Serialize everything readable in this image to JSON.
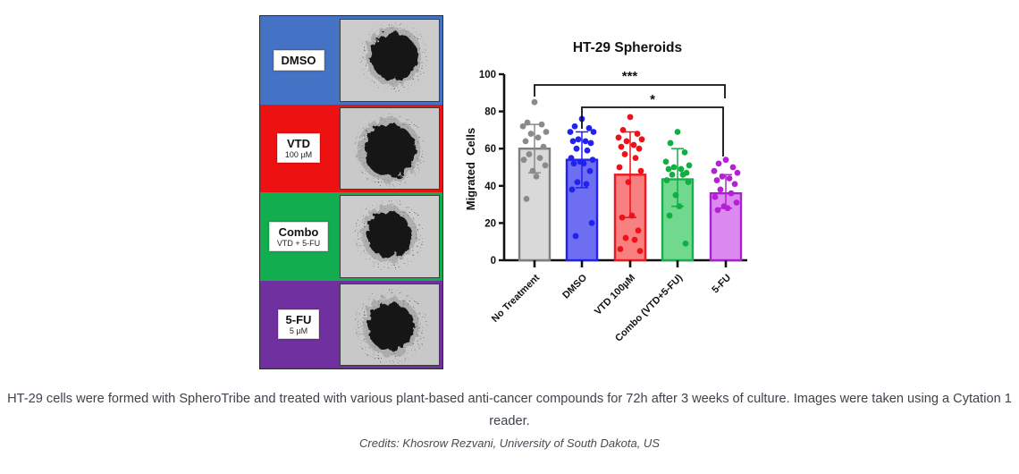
{
  "panel": {
    "rows": [
      {
        "label": "DMSO",
        "sublabel": "",
        "color": "#4472c4",
        "image": "dmso-spheroid-image"
      },
      {
        "label": "VTD",
        "sublabel": "100 µM",
        "color": "#ee1111",
        "image": "vtd-spheroid-image"
      },
      {
        "label": "Combo",
        "sublabel": "VTD + 5-FU",
        "color": "#12ad4f",
        "image": "combo-spheroid-image"
      },
      {
        "label": "5-FU",
        "sublabel": "5 µM",
        "color": "#7030a0",
        "image": "5fu-spheroid-image"
      }
    ]
  },
  "chart_data": {
    "type": "bar",
    "title": "HT-29 Spheroids",
    "xlabel": "",
    "ylabel": "Migrated  Cells",
    "ylim": [
      0,
      100
    ],
    "yticks": [
      0,
      20,
      40,
      60,
      80,
      100
    ],
    "grid": false,
    "legend": "none",
    "categories": [
      "No Treatment",
      "DMSO",
      "VTD 100µM",
      "Combo (VTD+5-FU)",
      "5-FU"
    ],
    "series": [
      {
        "name": "No Treatment",
        "mean": 60,
        "whisker_low": 47,
        "whisker_high": 73,
        "bar_fill": "#d9d9d9",
        "bar_stroke": "#7f7f7f",
        "point_color": "#8a8a8a",
        "points": [
          85,
          74,
          73,
          72,
          69,
          68,
          66,
          64,
          61,
          57,
          55,
          54,
          51,
          48,
          45,
          33
        ]
      },
      {
        "name": "DMSO",
        "mean": 54,
        "whisker_low": 39,
        "whisker_high": 69,
        "bar_fill": "#6e6ef2",
        "bar_stroke": "#2121f0",
        "point_color": "#2121f0",
        "points": [
          76,
          72,
          71,
          69,
          69,
          65,
          64,
          64,
          63,
          60,
          59,
          55,
          54,
          53,
          52,
          52,
          48,
          42,
          41,
          38,
          20,
          13
        ]
      },
      {
        "name": "VTD 100µM",
        "mean": 46,
        "whisker_low": 23,
        "whisker_high": 69,
        "bar_fill": "#f98080",
        "bar_stroke": "#f01820",
        "point_color": "#ee1119",
        "points": [
          77,
          70,
          68,
          66,
          65,
          64,
          62,
          61,
          60,
          57,
          55,
          50,
          48,
          42,
          24,
          23,
          16,
          12,
          11,
          6,
          5
        ]
      },
      {
        "name": "Combo (VTD+5-FU)",
        "mean": 43.5,
        "whisker_low": 29,
        "whisker_high": 60,
        "bar_fill": "#71d98d",
        "bar_stroke": "#17b04e",
        "point_color": "#12ad43",
        "points": [
          69,
          63,
          58,
          53,
          51,
          50,
          49,
          49,
          47,
          46,
          46,
          43,
          42,
          35,
          29,
          24,
          9
        ]
      },
      {
        "name": "5-FU",
        "mean": 36,
        "whisker_low": 28,
        "whisker_high": 46,
        "bar_fill": "#dc8af0",
        "bar_stroke": "#ab1fd2",
        "point_color": "#b520d6",
        "points": [
          54,
          52,
          50,
          48,
          47,
          45,
          44,
          43,
          41,
          38,
          36,
          34,
          31,
          29,
          28,
          27
        ]
      }
    ],
    "significance": [
      {
        "label": "***",
        "from": 0,
        "to": 4
      },
      {
        "label": "*",
        "from": 1,
        "to": 4
      }
    ]
  },
  "caption": {
    "text": "HT-29 cells were formed with SpheroTribe and treated with various plant-based anti-cancer compounds for 72h after 3 weeks of culture. Images were taken using a Cytation 1 reader.",
    "credits": "Credits: Khosrow Rezvani, University of South Dakota, US"
  }
}
